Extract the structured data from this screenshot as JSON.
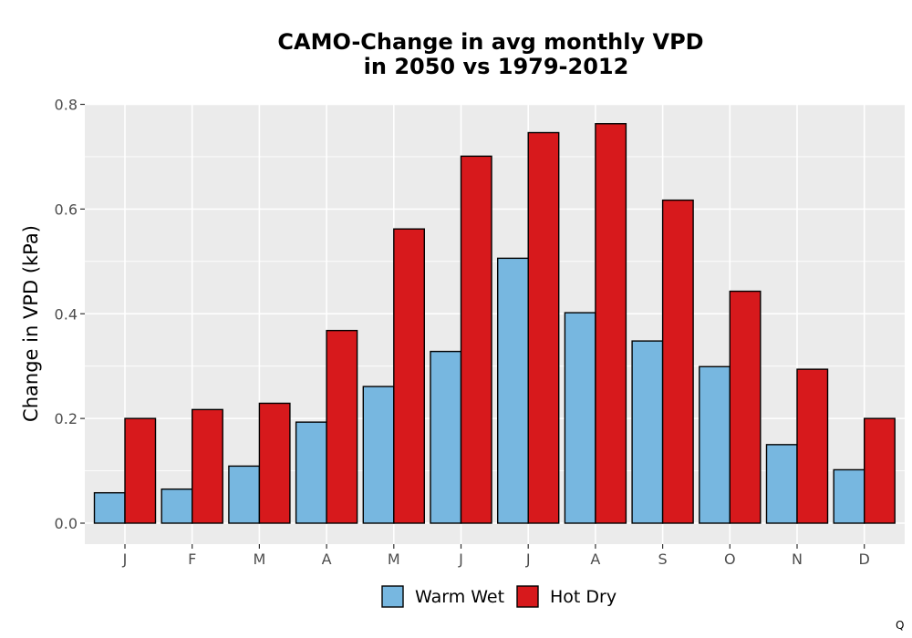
{
  "chart_data": {
    "type": "bar",
    "title_lines": [
      "CAMO-Change in avg monthly VPD",
      "in 2050 vs 1979-2012"
    ],
    "xlabel": "",
    "ylabel": "Change in VPD (kPa)",
    "categories": [
      "J",
      "F",
      "M",
      "A",
      "M",
      "J",
      "J",
      "A",
      "S",
      "O",
      "N",
      "D"
    ],
    "ylim": [
      -0.04,
      0.8
    ],
    "yticks": [
      0.0,
      0.2,
      0.4,
      0.6,
      0.8
    ],
    "ytick_labels": [
      "0.0",
      "0.2",
      "0.4",
      "0.6",
      "0.8"
    ],
    "grid": true,
    "legend_position": "bottom",
    "series": [
      {
        "name": "Warm Wet",
        "color": "#77b7e0",
        "values": [
          0.058,
          0.065,
          0.109,
          0.193,
          0.261,
          0.328,
          0.506,
          0.402,
          0.348,
          0.299,
          0.15,
          0.102
        ]
      },
      {
        "name": "Hot Dry",
        "color": "#d7191c",
        "values": [
          0.2,
          0.217,
          0.229,
          0.368,
          0.562,
          0.701,
          0.746,
          0.763,
          0.617,
          0.443,
          0.294,
          0.2
        ]
      }
    ],
    "panel_color": "#ebebeb",
    "grid_color": "#ffffff",
    "corner_mark": "Q"
  }
}
